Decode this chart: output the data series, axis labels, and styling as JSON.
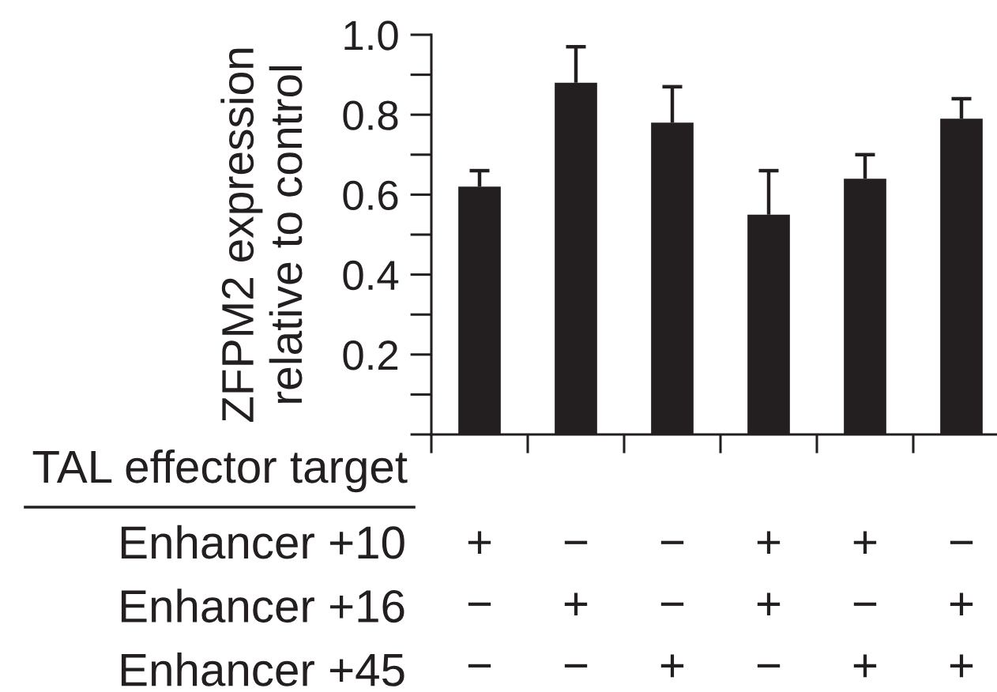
{
  "chart_data": {
    "type": "bar",
    "ylabel": "ZFPM2 expression\nrelative to control",
    "categories": [
      "+\n−\n−",
      "−\n+\n−",
      "−\n−\n+",
      "+\n+\n−",
      "+\n−\n+",
      "−\n+\n+"
    ],
    "values": [
      0.62,
      0.88,
      0.78,
      0.55,
      0.64,
      0.79
    ],
    "errors": [
      [
        0.62,
        0.66
      ],
      [
        0.88,
        0.97
      ],
      [
        0.78,
        0.87
      ],
      [
        0.55,
        0.66
      ],
      [
        0.64,
        0.7
      ],
      [
        0.79,
        0.84
      ]
    ],
    "color": "#231f20",
    "ylim": [
      0,
      1
    ],
    "yticks": [
      {
        "value": 0,
        "label": null
      },
      {
        "value": 0.1,
        "label": null
      },
      0.2,
      {
        "value": 0.3,
        "label": null
      },
      0.4,
      {
        "value": 0.5,
        "label": null
      },
      0.6,
      {
        "value": 0.7,
        "label": null
      },
      0.8,
      {
        "value": 0.9,
        "label": null
      },
      {
        "value": 1,
        "label": "1.0"
      }
    ],
    "annotations": [
      "TAL effector target",
      "Enhancer +10",
      "Enhancer +16",
      "Enhancer +45"
    ]
  }
}
